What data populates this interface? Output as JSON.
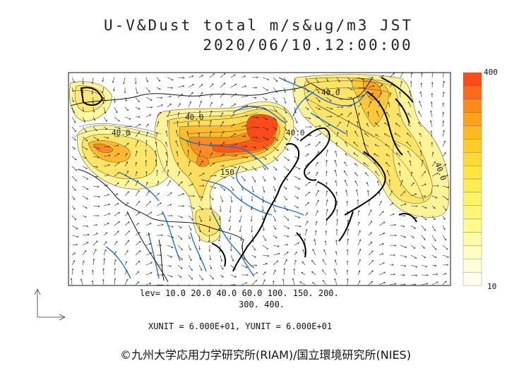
{
  "header": {
    "line1": "U-V&Dust total m/s&ug/m3 JST",
    "line2": "2020/06/10.12:00:00"
  },
  "legend": {
    "levels_line1": "lev= 10.0 20.0 40.0 60.0 100. 150. 200.",
    "levels_line2": "300. 400.",
    "units": "XUNIT = 6.000E+01, YUNIT = 6.000E+01"
  },
  "colorbar": {
    "top_label": "400",
    "bottom_label": "10",
    "colors": [
      "#ff4a1a",
      "#ff6a1a",
      "#ff8a1c",
      "#ffa21e",
      "#ffba22",
      "#ffcc2a",
      "#ffda36",
      "#ffe444",
      "#ffec52",
      "#fff264",
      "#fff678",
      "#fff98e",
      "#fffba6",
      "#fffdc0",
      "#fffed8",
      "#fffff0"
    ]
  },
  "contour_labels": [
    "40.0",
    "40.0",
    "40.0",
    "150",
    "40.0",
    "40.0"
  ],
  "copyright": "©九州大学応用力学研究所(RIAM)/国立環境研究所(NIES)"
}
